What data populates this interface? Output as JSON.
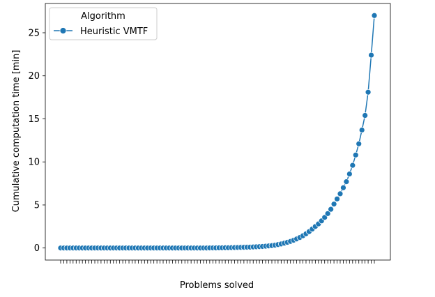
{
  "chart_data": {
    "type": "line",
    "title": "",
    "xlabel": "Problems solved",
    "ylabel": "Cumulative computation time [min]",
    "ylim": [
      -1.4,
      28.4
    ],
    "yticks": [
      0,
      5,
      10,
      15,
      20,
      25
    ],
    "x_tick_labels": "none",
    "grid": false,
    "legend": {
      "title": "Algorithm",
      "placement": "top-left"
    },
    "series": [
      {
        "name": "Heuristic VMTF",
        "color": "#1f77b4",
        "marker": "circle",
        "values": [
          0,
          0,
          0,
          0,
          0,
          0,
          0,
          0,
          0,
          0,
          0,
          0,
          0,
          0,
          0,
          0,
          0,
          0,
          0,
          0,
          0,
          0,
          0,
          0,
          0,
          0,
          0,
          0,
          0,
          0,
          0,
          0,
          0,
          0,
          0,
          0,
          0,
          0,
          0,
          0,
          0,
          0,
          0,
          0,
          0,
          0,
          0,
          0,
          0.01,
          0.01,
          0.01,
          0.02,
          0.02,
          0.03,
          0.03,
          0.04,
          0.05,
          0.06,
          0.07,
          0.08,
          0.09,
          0.1,
          0.12,
          0.14,
          0.16,
          0.18,
          0.21,
          0.24,
          0.28,
          0.33,
          0.4,
          0.47,
          0.56,
          0.66,
          0.77,
          0.9,
          1.05,
          1.22,
          1.42,
          1.65,
          1.9,
          2.2,
          2.5,
          2.8,
          3.15,
          3.55,
          4.0,
          4.5,
          5.1,
          5.7,
          6.3,
          7.0,
          7.7,
          8.6,
          9.6,
          10.8,
          12.1,
          13.7,
          15.4,
          18.1,
          22.4,
          27.0
        ]
      }
    ]
  }
}
